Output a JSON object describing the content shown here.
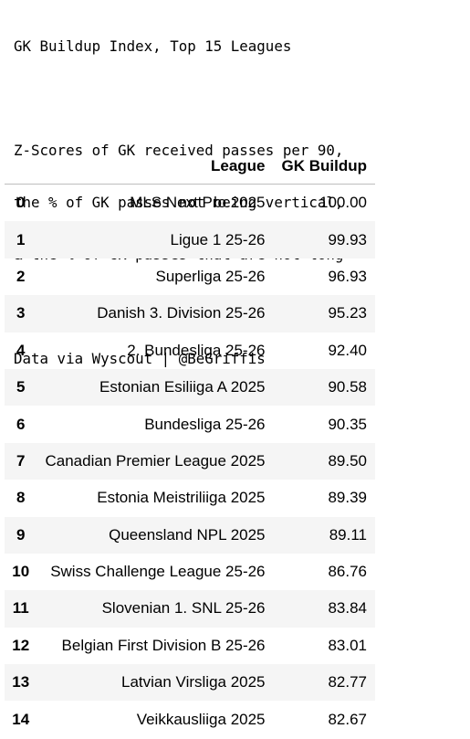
{
  "header": {
    "title": "GK Buildup Index, Top 15 Leagues",
    "description_lines": [
      "Z-Scores of GK received passes per 90,",
      "the % of GK passes not being vertical,",
      "& the % of GK passes that are not long"
    ],
    "source": "Data via Wyscout | @BeGriffis"
  },
  "table": {
    "columns": [
      "",
      "League",
      "GK Buildup"
    ],
    "rows": [
      {
        "index": "0",
        "league": "MLS Next Pro 2025",
        "gk_buildup": "100.00"
      },
      {
        "index": "1",
        "league": "Ligue 1 25-26",
        "gk_buildup": "99.93"
      },
      {
        "index": "2",
        "league": "Superliga 25-26",
        "gk_buildup": "96.93"
      },
      {
        "index": "3",
        "league": "Danish 3. Division 25-26",
        "gk_buildup": "95.23"
      },
      {
        "index": "4",
        "league": "2. Bundesliga 25-26",
        "gk_buildup": "92.40"
      },
      {
        "index": "5",
        "league": "Estonian Esiliiga A 2025",
        "gk_buildup": "90.58"
      },
      {
        "index": "6",
        "league": "Bundesliga 25-26",
        "gk_buildup": "90.35"
      },
      {
        "index": "7",
        "league": "Canadian Premier League 2025",
        "gk_buildup": "89.50"
      },
      {
        "index": "8",
        "league": "Estonia Meistriliiga 2025",
        "gk_buildup": "89.39"
      },
      {
        "index": "9",
        "league": "Queensland NPL 2025",
        "gk_buildup": "89.11"
      },
      {
        "index": "10",
        "league": "Swiss Challenge League 25-26",
        "gk_buildup": "86.76"
      },
      {
        "index": "11",
        "league": "Slovenian 1. SNL 25-26",
        "gk_buildup": "83.84"
      },
      {
        "index": "12",
        "league": "Belgian First Division B 25-26",
        "gk_buildup": "83.01"
      },
      {
        "index": "13",
        "league": "Latvian Virsliga 2025",
        "gk_buildup": "82.77"
      },
      {
        "index": "14",
        "league": "Veikkausliiga 2025",
        "gk_buildup": "82.67"
      }
    ]
  }
}
